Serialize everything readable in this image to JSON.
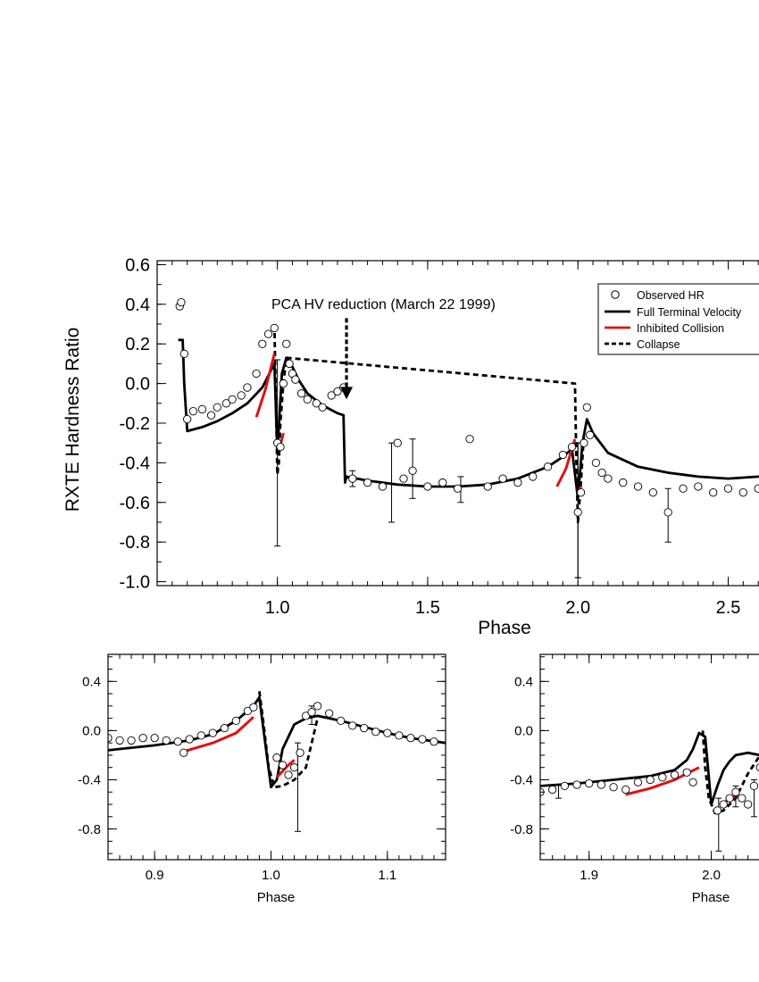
{
  "chart_data": [
    {
      "id": "main",
      "type": "scatter",
      "title": "",
      "xlabel": "Phase",
      "ylabel": "RXTE Hardness Ratio",
      "xlim": [
        0.6,
        2.65
      ],
      "ylim": [
        -1.02,
        0.62
      ],
      "xticks": [
        1.0,
        1.5,
        2.0,
        2.5
      ],
      "xtick_labels": [
        "1.0",
        "1.5",
        "2.0",
        "2.5"
      ],
      "yticks": [
        0.6,
        0.4,
        0.2,
        0.0,
        -0.2,
        -0.4,
        -0.6,
        -0.8,
        -1.0
      ],
      "ytick_labels": [
        "0.6",
        "0.4",
        "0.2",
        "0.0",
        "-0.2",
        "-0.4",
        "-0.6",
        "-0.8",
        "-1.0"
      ],
      "annotation": {
        "text": "PCA HV reduction (March 22 1999)",
        "x": 1.0,
        "y": 0.37,
        "arrow_x": 1.23,
        "arrow_from": 0.33,
        "arrow_to": -0.08
      },
      "legend": {
        "position": "top-right",
        "entries": [
          {
            "label": "Observed HR",
            "style": "circle"
          },
          {
            "label": "Full Terminal Velocity",
            "style": "solid-black"
          },
          {
            "label": "Inhibited Collision",
            "style": "solid-red"
          },
          {
            "label": "Collapse",
            "style": "dashed-black"
          }
        ]
      },
      "series": [
        {
          "name": "Full Terminal Velocity",
          "style": "solid-black",
          "x": [
            0.67,
            0.685,
            0.69,
            0.7,
            0.75,
            0.8,
            0.85,
            0.9,
            0.95,
            0.99,
            1.0,
            1.015,
            1.03,
            1.045,
            1.07,
            1.1,
            1.15,
            1.2,
            1.22,
            1.225,
            1.23,
            1.3,
            1.4,
            1.5,
            1.6,
            1.7,
            1.8,
            1.9,
            1.95,
            1.98,
            2.0,
            2.015,
            2.03,
            2.05,
            2.1,
            2.2,
            2.3,
            2.4,
            2.5,
            2.6,
            2.65
          ],
          "y": [
            0.22,
            0.22,
            0.0,
            -0.24,
            -0.22,
            -0.19,
            -0.15,
            -0.1,
            -0.02,
            0.1,
            -0.35,
            0.05,
            0.13,
            0.1,
            0.02,
            -0.05,
            -0.11,
            -0.15,
            -0.16,
            -0.5,
            -0.47,
            -0.49,
            -0.51,
            -0.52,
            -0.52,
            -0.51,
            -0.48,
            -0.42,
            -0.37,
            -0.33,
            -0.58,
            -0.3,
            -0.18,
            -0.25,
            -0.35,
            -0.42,
            -0.45,
            -0.47,
            -0.48,
            -0.47,
            -0.46
          ]
        },
        {
          "name": "Collapse",
          "style": "dashed-black",
          "x": [
            0.99,
            0.995,
            1.0,
            1.005,
            1.01,
            1.02,
            1.03,
            1.99,
            1.995,
            2.0,
            2.01,
            2.02
          ],
          "y": [
            0.3,
            -0.1,
            -0.46,
            -0.4,
            -0.2,
            0.0,
            0.13,
            0.0,
            -0.4,
            -0.7,
            -0.5,
            -0.25
          ]
        },
        {
          "name": "Inhibited Collision",
          "style": "solid-red",
          "x": [
            0.93,
            0.96,
            0.99,
            1.005,
            1.02,
            1.93,
            1.96,
            1.99,
            2.0,
            2.01
          ],
          "y": [
            -0.17,
            -0.03,
            0.15,
            -0.34,
            -0.25,
            -0.52,
            -0.43,
            -0.28,
            -0.55,
            -0.52
          ],
          "segments": [
            [
              0,
              3
            ],
            [
              3,
              5
            ],
            [
              5,
              8
            ],
            [
              8,
              10
            ]
          ]
        },
        {
          "name": "Observed HR",
          "style": "circle",
          "x": [
            0.675,
            0.68,
            0.69,
            0.7,
            0.72,
            0.75,
            0.78,
            0.8,
            0.83,
            0.85,
            0.88,
            0.9,
            0.93,
            0.95,
            0.97,
            0.99,
            1.0,
            1.01,
            1.02,
            1.03,
            1.04,
            1.05,
            1.06,
            1.08,
            1.1,
            1.13,
            1.15,
            1.18,
            1.2,
            1.22,
            1.25,
            1.3,
            1.35,
            1.4,
            1.42,
            1.45,
            1.5,
            1.55,
            1.6,
            1.64,
            1.7,
            1.75,
            1.8,
            1.85,
            1.9,
            1.95,
            1.98,
            2.0,
            2.01,
            2.02,
            2.03,
            2.04,
            2.06,
            2.08,
            2.1,
            2.15,
            2.2,
            2.25,
            2.3,
            2.35,
            2.4,
            2.45,
            2.5,
            2.55,
            2.6,
            2.64
          ],
          "y": [
            0.39,
            0.41,
            0.15,
            -0.18,
            -0.14,
            -0.13,
            -0.16,
            -0.12,
            -0.1,
            -0.08,
            -0.06,
            -0.02,
            0.05,
            0.2,
            0.25,
            0.28,
            -0.3,
            -0.32,
            0.0,
            0.2,
            0.1,
            0.05,
            0.02,
            -0.05,
            -0.08,
            -0.1,
            -0.12,
            -0.06,
            -0.04,
            -0.02,
            -0.48,
            -0.5,
            -0.52,
            -0.3,
            -0.48,
            -0.44,
            -0.52,
            -0.5,
            -0.53,
            -0.28,
            -0.52,
            -0.48,
            -0.5,
            -0.47,
            -0.42,
            -0.36,
            -0.32,
            -0.65,
            -0.55,
            -0.3,
            -0.12,
            -0.26,
            -0.4,
            -0.45,
            -0.48,
            -0.5,
            -0.52,
            -0.55,
            -0.65,
            -0.53,
            -0.52,
            -0.55,
            -0.53,
            -0.55,
            -0.53,
            -0.55
          ],
          "errors": {
            "x": [
              1.0,
              1.25,
              1.38,
              1.45,
              1.61,
              2.0,
              2.0,
              2.3
            ],
            "lo": [
              -0.82,
              -0.52,
              -0.7,
              -0.58,
              -0.6,
              -0.98,
              -0.98,
              -0.8
            ],
            "hi": [
              0.12,
              -0.44,
              -0.3,
              -0.28,
              -0.47,
              -0.3,
              -0.3,
              -0.53
            ]
          }
        }
      ]
    },
    {
      "id": "inset-left",
      "type": "scatter",
      "xlabel": "Phase",
      "ylabel": "",
      "xlim": [
        0.86,
        1.15
      ],
      "ylim": [
        -1.05,
        0.62
      ],
      "xticks": [
        0.9,
        1.0,
        1.1
      ],
      "xtick_labels": [
        "0.9",
        "1.0",
        "1.1"
      ],
      "yticks": [
        0.4,
        0.0,
        -0.4,
        -0.8
      ],
      "ytick_labels": [
        "0.4",
        "0.0",
        "-0.4",
        "-0.8"
      ],
      "series": [
        {
          "name": "Full Terminal Velocity",
          "style": "solid-black",
          "x": [
            0.86,
            0.9,
            0.93,
            0.95,
            0.97,
            0.985,
            0.99,
            0.995,
            1.0,
            1.005,
            1.01,
            1.02,
            1.03,
            1.04,
            1.06,
            1.08,
            1.1,
            1.12,
            1.15
          ],
          "y": [
            -0.16,
            -0.12,
            -0.08,
            -0.03,
            0.08,
            0.2,
            0.27,
            -0.1,
            -0.46,
            -0.4,
            -0.15,
            0.05,
            0.1,
            0.12,
            0.08,
            0.03,
            -0.02,
            -0.06,
            -0.1
          ]
        },
        {
          "name": "Collapse",
          "style": "dashed-black",
          "x": [
            0.99,
            0.993,
            0.998,
            1.003,
            1.01,
            1.02,
            1.03,
            1.04
          ],
          "y": [
            0.32,
            0.1,
            -0.3,
            -0.46,
            -0.45,
            -0.4,
            -0.3,
            0.1
          ]
        },
        {
          "name": "Inhibited Collision",
          "style": "solid-red",
          "x": [
            0.925,
            0.95,
            0.97,
            0.985,
            1.005,
            1.015,
            1.02
          ],
          "y": [
            -0.17,
            -0.1,
            -0.02,
            0.11,
            -0.38,
            -0.28,
            -0.24
          ],
          "segments": [
            [
              0,
              4
            ],
            [
              4,
              7
            ]
          ]
        },
        {
          "name": "Observed HR",
          "style": "circle",
          "x": [
            0.86,
            0.87,
            0.88,
            0.89,
            0.9,
            0.91,
            0.92,
            0.925,
            0.93,
            0.94,
            0.95,
            0.96,
            0.97,
            0.98,
            0.985,
            1.005,
            1.01,
            1.015,
            1.02,
            1.025,
            1.03,
            1.035,
            1.04,
            1.05,
            1.06,
            1.07,
            1.08,
            1.09,
            1.1,
            1.11,
            1.12,
            1.13,
            1.14
          ],
          "y": [
            -0.06,
            -0.08,
            -0.08,
            -0.06,
            -0.06,
            -0.08,
            -0.09,
            -0.18,
            -0.07,
            -0.04,
            -0.02,
            0.02,
            0.08,
            0.16,
            0.19,
            -0.22,
            -0.28,
            -0.36,
            -0.3,
            -0.18,
            0.12,
            0.15,
            0.2,
            0.14,
            0.08,
            0.04,
            0.02,
            -0.01,
            -0.02,
            -0.04,
            -0.06,
            -0.07,
            -0.09
          ],
          "errors": {
            "x": [
              1.023,
              1.035
            ],
            "lo": [
              -0.82,
              0.05
            ],
            "hi": [
              -0.1,
              0.2
            ]
          }
        }
      ]
    },
    {
      "id": "inset-right",
      "type": "scatter",
      "xlabel": "Phase",
      "ylabel": "",
      "xlim": [
        1.86,
        2.05
      ],
      "ylim": [
        -1.05,
        0.62
      ],
      "xticks": [
        1.9,
        2.0
      ],
      "xtick_labels": [
        "1.9",
        "2.0"
      ],
      "yticks": [
        0.4,
        0.0,
        -0.4,
        -0.8
      ],
      "ytick_labels": [
        "0.4",
        "0.0",
        "-0.4",
        "-0.8"
      ],
      "series": [
        {
          "name": "Full Terminal Velocity",
          "style": "solid-black",
          "x": [
            1.86,
            1.89,
            1.92,
            1.95,
            1.97,
            1.98,
            1.985,
            1.99,
            1.995,
            2.0,
            2.005,
            2.01,
            2.015,
            2.02,
            2.03,
            2.04,
            2.05
          ],
          "y": [
            -0.45,
            -0.43,
            -0.4,
            -0.37,
            -0.32,
            -0.24,
            -0.15,
            -0.02,
            -0.05,
            -0.6,
            -0.45,
            -0.32,
            -0.25,
            -0.2,
            -0.18,
            -0.2,
            -0.22
          ]
        },
        {
          "name": "Collapse",
          "style": "dashed-black",
          "x": [
            1.993,
            1.995,
            1.998,
            2.003,
            2.01,
            2.02,
            2.03,
            2.04,
            2.05
          ],
          "y": [
            0.0,
            -0.3,
            -0.55,
            -0.67,
            -0.65,
            -0.55,
            -0.35,
            -0.2,
            -0.22
          ]
        },
        {
          "name": "Inhibited Collision",
          "style": "solid-red",
          "x": [
            1.93,
            1.95,
            1.97,
            1.99,
            2.007,
            2.015,
            2.022
          ],
          "y": [
            -0.52,
            -0.47,
            -0.4,
            -0.3,
            -0.6,
            -0.56,
            -0.52
          ],
          "segments": [
            [
              0,
              4
            ],
            [
              4,
              7
            ]
          ]
        },
        {
          "name": "Observed HR",
          "style": "circle",
          "x": [
            1.86,
            1.87,
            1.88,
            1.89,
            1.9,
            1.91,
            1.92,
            1.93,
            1.94,
            1.95,
            1.96,
            1.97,
            1.98,
            1.985,
            2.005,
            2.01,
            2.015,
            2.02,
            2.025,
            2.03,
            2.035,
            2.04,
            2.045,
            2.05
          ],
          "y": [
            -0.5,
            -0.48,
            -0.45,
            -0.44,
            -0.43,
            -0.44,
            -0.46,
            -0.48,
            -0.42,
            -0.4,
            -0.38,
            -0.36,
            -0.34,
            -0.42,
            -0.65,
            -0.6,
            -0.55,
            -0.5,
            -0.55,
            -0.6,
            -0.45,
            -0.3,
            -0.2,
            -0.25
          ],
          "errors": {
            "x": [
              1.875,
              2.006,
              2.02,
              2.035
            ],
            "lo": [
              -0.55,
              -0.98,
              -0.62,
              -0.7
            ],
            "hi": [
              -0.44,
              -0.55,
              -0.45,
              -0.4
            ]
          }
        }
      ]
    }
  ]
}
